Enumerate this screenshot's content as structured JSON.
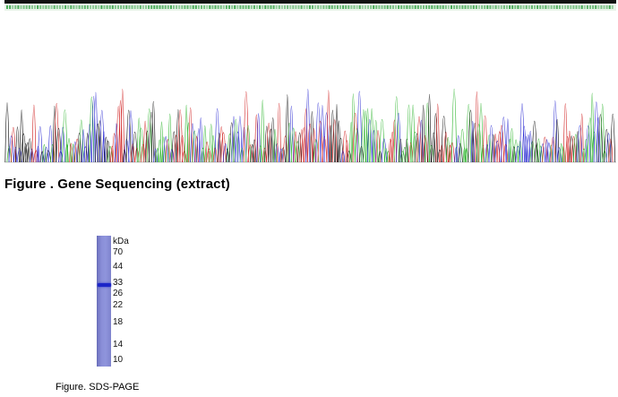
{
  "sequencing": {
    "caption": "Figure . Gene Sequencing (extract)",
    "colors": {
      "A": "#2fb52f",
      "C": "#2b2bd2",
      "G": "#111111",
      "T": "#d02020",
      "header_text": "#2fa040"
    }
  },
  "sds_page": {
    "unit_label": "kDa",
    "markers": [
      "70",
      "44",
      "33",
      "26",
      "22",
      "18",
      "14",
      "10"
    ],
    "lane_color": "#8a8fd8",
    "band_color": "#1c25c8",
    "caption": "Figure. SDS-PAGE"
  }
}
